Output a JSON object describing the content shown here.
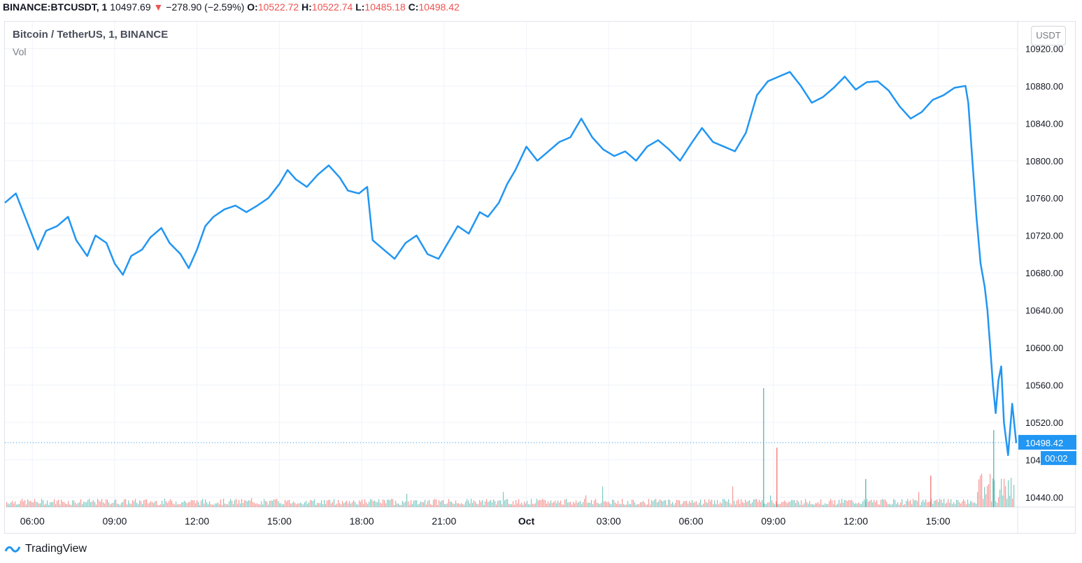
{
  "header": {
    "symbol": "BINANCE:BTCUSDT, 1",
    "last": "10497.69",
    "arrow": "▼",
    "change": "−278.90 (−2.59%)",
    "o_label": "O:",
    "o_value": "10522.72",
    "h_label": "H:",
    "h_value": "10522.74",
    "l_label": "L:",
    "l_value": "10485.18",
    "c_label": "C:",
    "c_value": "10498.42"
  },
  "legend": {
    "title": "Bitcoin / TetherUS, 1, BINANCE",
    "vol": "Vol"
  },
  "currency": "USDT",
  "footer": {
    "brand": "TradingView"
  },
  "colors": {
    "line": "#2196f3",
    "grid": "#f0f3fa",
    "axis": "#787b86",
    "badge": "#2196f3",
    "up": "#26a69a",
    "down": "#ef5350"
  },
  "chart_data": {
    "type": "line",
    "title": "Bitcoin / TetherUS, 1, BINANCE",
    "ylim": [
      10430,
      10950
    ],
    "y_ticks": [
      "10440.00",
      "10480.00",
      "10520.00",
      "10560.00",
      "10600.00",
      "10640.00",
      "10680.00",
      "10720.00",
      "10760.00",
      "10800.00",
      "10840.00",
      "10880.00",
      "10920.00"
    ],
    "x_ticks": [
      "06:00",
      "09:00",
      "12:00",
      "15:00",
      "18:00",
      "21:00",
      "Oct",
      "03:00",
      "06:00",
      "09:00",
      "12:00",
      "15:00"
    ],
    "x_tick_hours": [
      6,
      9,
      12,
      15,
      18,
      21,
      24,
      27,
      30,
      33,
      36,
      39
    ],
    "x_range_hours": [
      5.0,
      41.9
    ],
    "last_price_label": "10498.42",
    "countdown_label": "00:02",
    "series": [
      {
        "x": [
          5.0,
          5.4,
          5.8,
          6.2,
          6.5,
          6.9,
          7.3,
          7.6,
          8.0,
          8.3,
          8.7,
          9.0,
          9.3,
          9.6,
          10.0,
          10.3,
          10.7,
          11.0,
          11.4,
          11.7,
          12.0,
          12.3,
          12.6,
          13.0,
          13.4,
          13.8,
          14.2,
          14.6,
          15.0,
          15.3,
          15.6,
          16.0,
          16.4,
          16.8,
          17.2,
          17.5,
          17.9,
          18.2,
          18.4,
          18.8,
          19.2,
          19.6,
          20.0,
          20.4,
          20.8,
          21.2,
          21.5,
          21.9,
          22.3,
          22.6,
          23.0,
          23.3,
          23.6,
          24.0,
          24.4,
          24.8,
          25.2,
          25.6,
          26.0,
          26.4,
          26.8,
          27.2,
          27.6,
          28.0,
          28.4,
          28.8,
          29.2,
          29.6,
          30.0,
          30.4,
          30.8,
          31.2,
          31.6,
          32.0,
          32.4,
          32.8,
          33.2,
          33.6,
          34.0,
          34.4,
          34.8,
          35.2,
          35.6,
          36.0,
          36.4,
          36.8,
          37.2,
          37.6,
          38.0,
          38.4,
          38.8,
          39.2,
          39.6,
          40.0,
          40.1,
          40.25,
          40.4,
          40.55,
          40.7,
          40.8,
          40.9,
          41.0,
          41.1,
          41.2,
          41.3,
          41.4,
          41.55,
          41.7,
          41.85
        ],
        "y": [
          10755,
          10765,
          10735,
          10705,
          10725,
          10730,
          10740,
          10715,
          10698,
          10720,
          10712,
          10690,
          10678,
          10698,
          10705,
          10718,
          10728,
          10712,
          10700,
          10685,
          10705,
          10730,
          10740,
          10748,
          10752,
          10745,
          10752,
          10760,
          10775,
          10790,
          10780,
          10772,
          10785,
          10795,
          10782,
          10768,
          10765,
          10772,
          10715,
          10705,
          10695,
          10712,
          10720,
          10700,
          10695,
          10715,
          10730,
          10722,
          10745,
          10740,
          10755,
          10775,
          10790,
          10815,
          10800,
          10810,
          10820,
          10825,
          10845,
          10825,
          10812,
          10805,
          10810,
          10800,
          10815,
          10822,
          10812,
          10800,
          10818,
          10835,
          10820,
          10815,
          10810,
          10830,
          10870,
          10885,
          10890,
          10895,
          10880,
          10862,
          10868,
          10878,
          10890,
          10876,
          10884,
          10885,
          10875,
          10858,
          10845,
          10852,
          10865,
          10870,
          10878,
          10880,
          10862,
          10800,
          10740,
          10690,
          10665,
          10640,
          10600,
          10560,
          10530,
          10565,
          10580,
          10520,
          10485,
          10540,
          10498
        ]
      }
    ],
    "volume": {
      "baseline_range": [
        10430,
        10480
      ]
    }
  }
}
